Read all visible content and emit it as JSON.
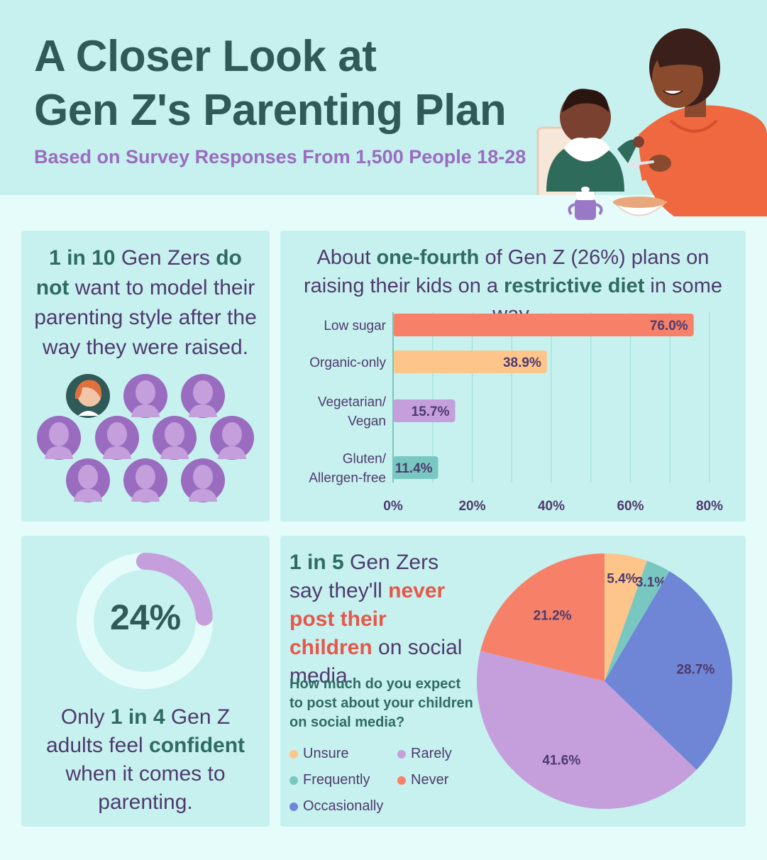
{
  "header": {
    "title_line1": "A Closer Look at",
    "title_line2": "Gen Z's Parenting Plan",
    "subtitle": "Based on Survey Responses From 1,500 People 18-28"
  },
  "panel_model": {
    "p1": "1 in 10",
    "p2": " Gen Zers ",
    "p3": "do not",
    "p4": " want to model their parenting style after the way they were raised."
  },
  "panel_diet": {
    "p1": "About ",
    "p2": "one-fourth",
    "p3": " of Gen Z (26%) plans on raising their kids on a ",
    "p4": "restrictive diet",
    "p5": " in some way."
  },
  "panel_confidence": {
    "value_label": "24%",
    "p1": "Only ",
    "p2": "1 in 4",
    "p3": " Gen Z adults feel ",
    "p4": "confident",
    "p5": " when it comes to parenting."
  },
  "panel_social": {
    "p1": "1 in 5",
    "p2": " Gen Zers say they'll ",
    "p3": "never post their children",
    "p4": " on social media.",
    "question": "How much do you expect to post about your children on social media?"
  },
  "colors": {
    "low_sugar": "#f78068",
    "organic": "#fec58a",
    "vegetarian": "#c49fdc",
    "gluten": "#78c7c1",
    "unsure": "#fec58a",
    "frequently": "#78c7c1",
    "occasionally": "#6f86d6",
    "rarely": "#c49fdc",
    "never": "#f78068",
    "ring": "#c49fdc",
    "head": "#9a6cc0"
  },
  "chart_data": [
    {
      "type": "bar",
      "orientation": "horizontal",
      "categories": [
        [
          "Low sugar"
        ],
        [
          "Organic-only"
        ],
        [
          "Vegetarian/",
          "Vegan"
        ],
        [
          "Gluten/",
          "Allergen-free"
        ]
      ],
      "values": [
        76.0,
        38.9,
        15.7,
        11.4
      ],
      "value_labels": [
        "76.0%",
        "38.9%",
        "15.7%",
        "11.4%"
      ],
      "xlim": [
        0,
        80
      ],
      "xticks": [
        0,
        20,
        40,
        60,
        80
      ],
      "xtick_labels": [
        "0%",
        "20%",
        "40%",
        "60%",
        "80%"
      ],
      "grid": true
    },
    {
      "type": "pie",
      "labels": [
        "Unsure",
        "Frequently",
        "Occasionally",
        "Rarely",
        "Never"
      ],
      "values": [
        5.4,
        3.1,
        28.7,
        41.6,
        21.2
      ],
      "value_labels": [
        "5.4%",
        "3.1%",
        "28.7%",
        "41.6%",
        "21.2%"
      ],
      "legend_placement": "left"
    },
    {
      "type": "donut",
      "value": 24,
      "max": 100
    }
  ]
}
